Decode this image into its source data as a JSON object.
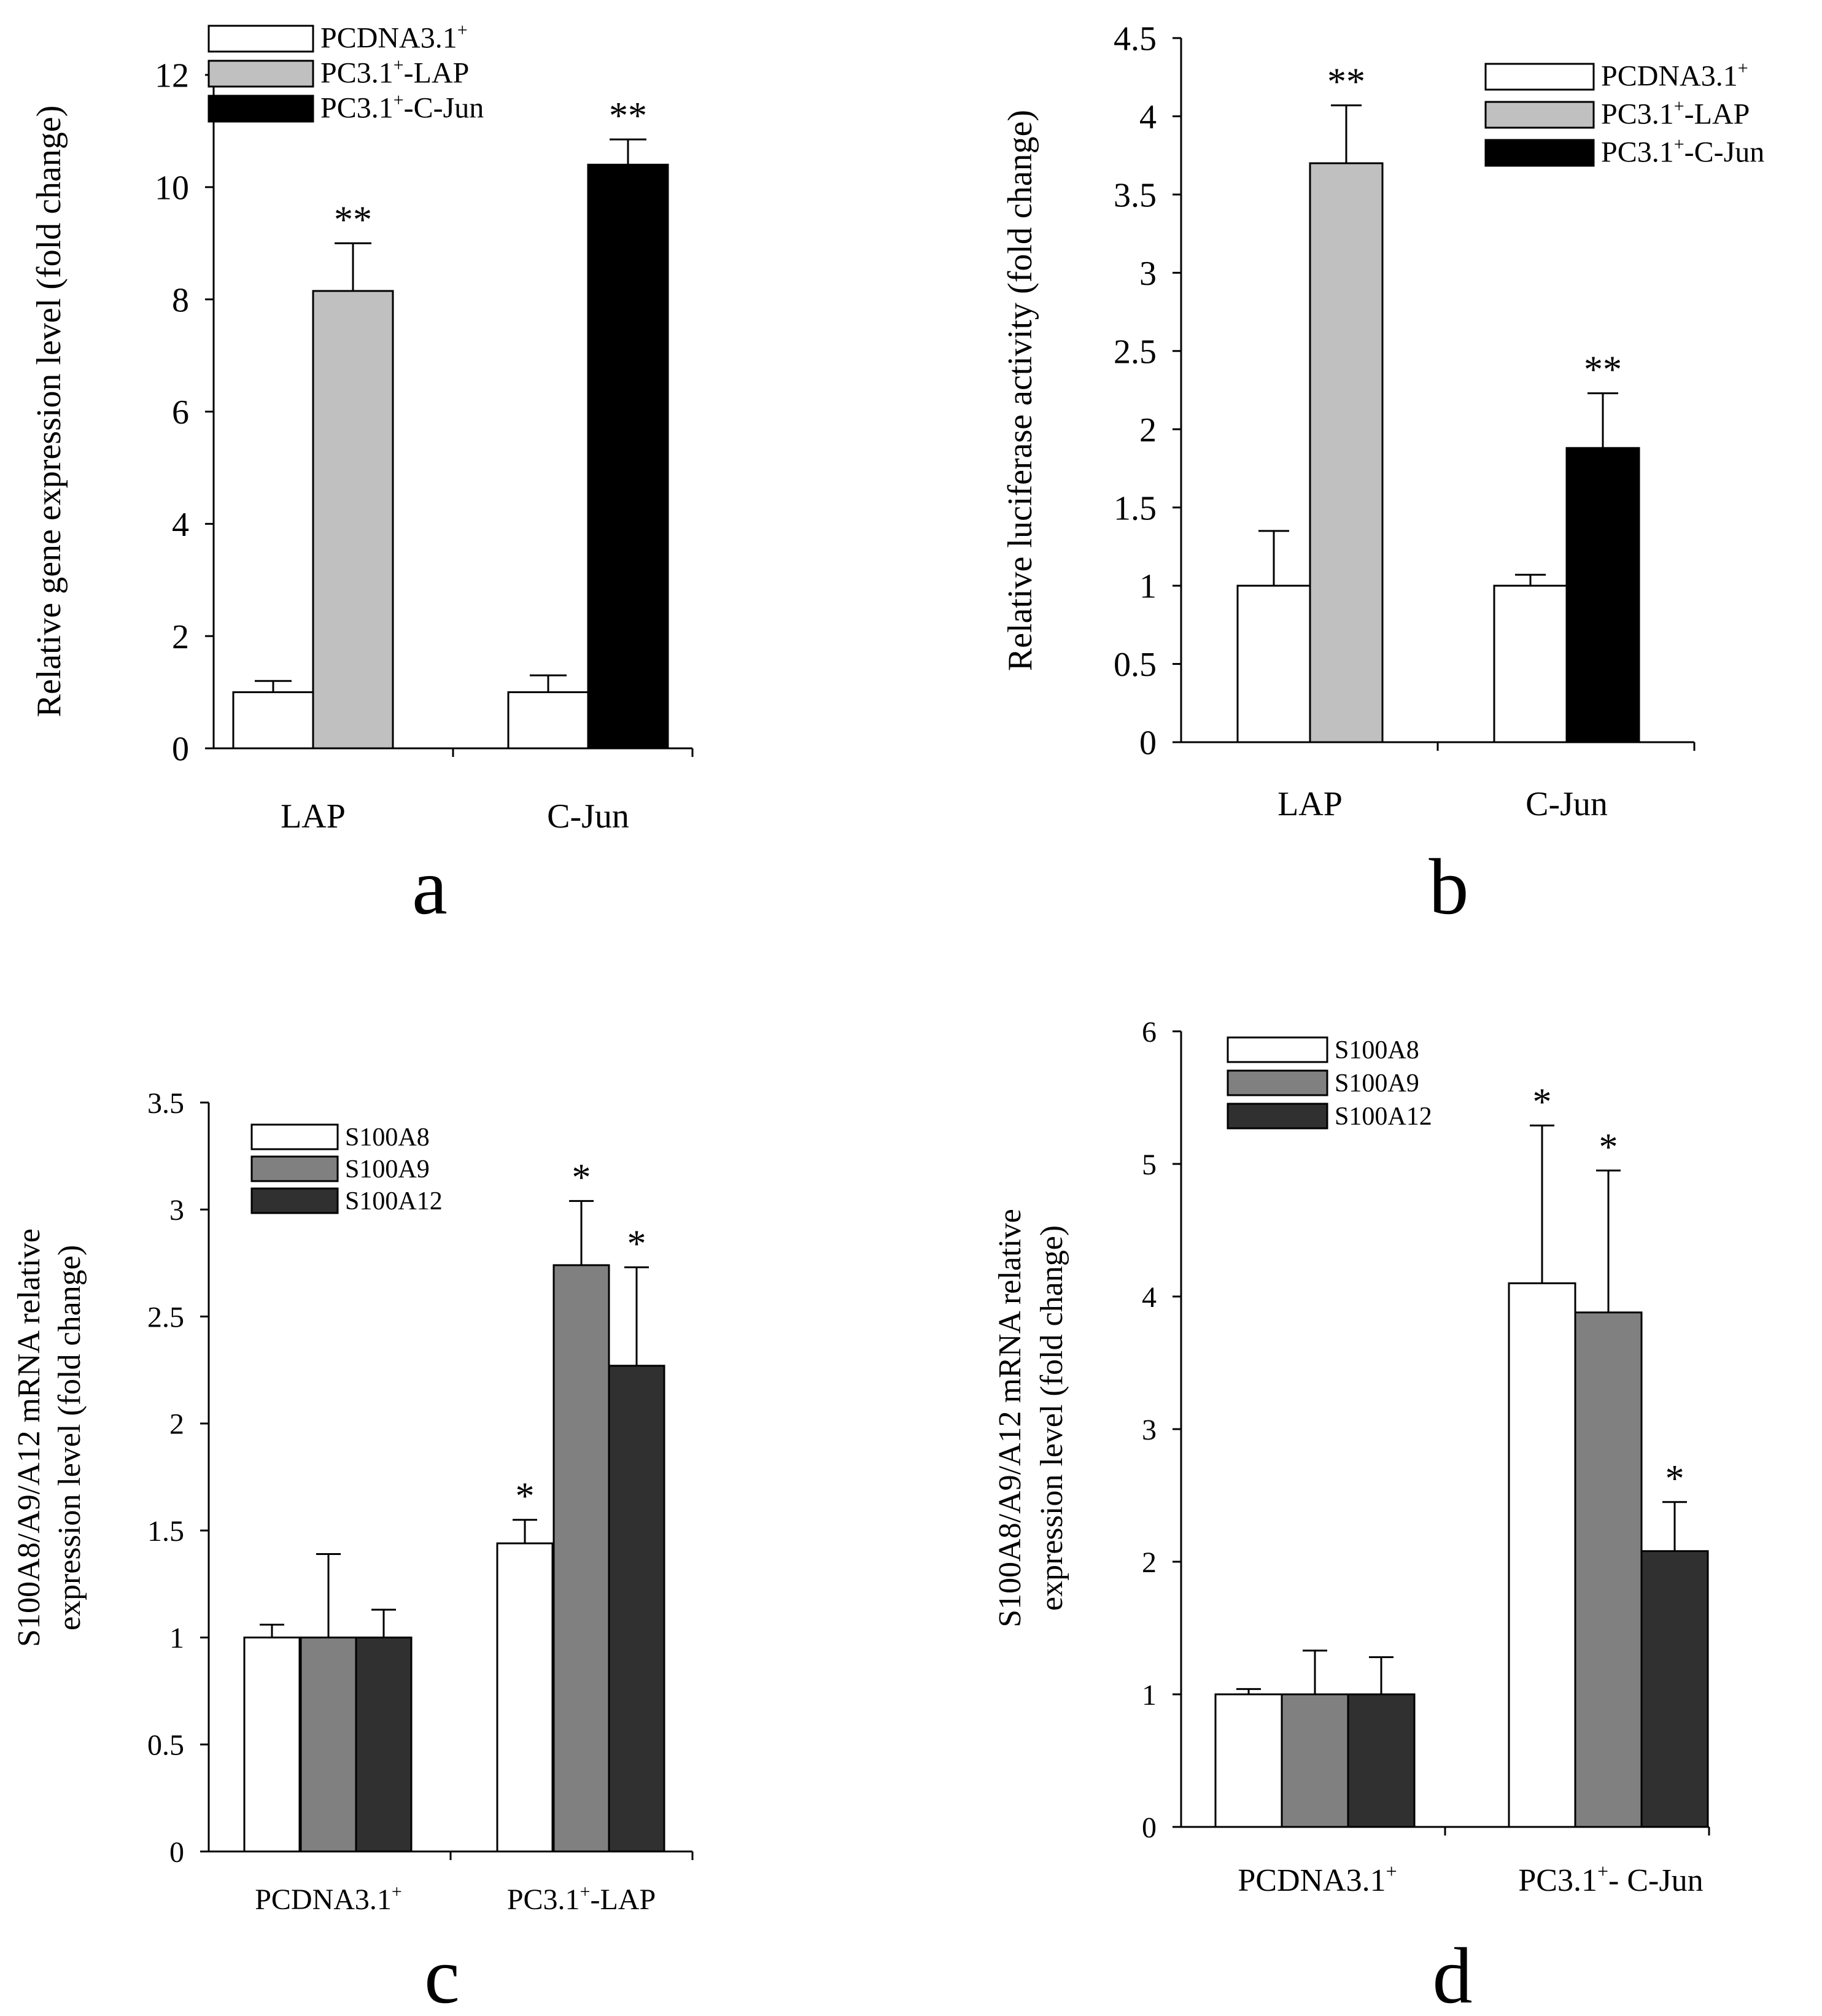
{
  "chart_data": [
    {
      "panel": "a",
      "type": "bar",
      "categories": [
        "LAP",
        "C-Jun"
      ],
      "series": [
        {
          "name": "PCDNA3.1+",
          "values": [
            1.0,
            1.0
          ],
          "errors": [
            0.2,
            0.3
          ],
          "color": "#ffffff",
          "annotations": [
            "",
            ""
          ]
        },
        {
          "name": "PC3.1+-LAP",
          "values": [
            8.15,
            null
          ],
          "errors": [
            0.85,
            null
          ],
          "color": "#c0c0c0",
          "annotations": [
            "**",
            ""
          ]
        },
        {
          "name": "PC3.1+-C-Jun",
          "values": [
            null,
            10.4
          ],
          "errors": [
            null,
            0.45
          ],
          "color": "#000000",
          "annotations": [
            "",
            "**"
          ]
        }
      ],
      "ylabel": "Relative gene expression level (fold change)",
      "xlabel": "",
      "ylim": [
        0,
        12
      ],
      "yticks": [
        "0",
        "2",
        "4",
        "6",
        "8",
        "10",
        "12"
      ],
      "legend_position": "top-left"
    },
    {
      "panel": "b",
      "type": "bar",
      "categories": [
        "LAP",
        "C-Jun"
      ],
      "series": [
        {
          "name": "PCDNA3.1+",
          "values": [
            1.0,
            1.0
          ],
          "errors": [
            0.35,
            0.07
          ],
          "color": "#ffffff",
          "annotations": [
            "",
            ""
          ]
        },
        {
          "name": "PC3.1+-LAP",
          "values": [
            3.7,
            null
          ],
          "errors": [
            0.37,
            null
          ],
          "color": "#c0c0c0",
          "annotations": [
            "**",
            ""
          ]
        },
        {
          "name": "PC3.1+-C-Jun",
          "values": [
            null,
            1.88
          ],
          "errors": [
            null,
            0.35
          ],
          "color": "#000000",
          "annotations": [
            "",
            "**"
          ]
        }
      ],
      "ylabel": "Relative luciferase activity (fold change)",
      "xlabel": "",
      "ylim": [
        0,
        4.5
      ],
      "yticks": [
        "0",
        "0.5",
        "1",
        "1.5",
        "2",
        "2.5",
        "3",
        "3.5",
        "4",
        "4.5"
      ],
      "legend_position": "top-right"
    },
    {
      "panel": "c",
      "type": "bar",
      "categories": [
        "PCDNA3.1+",
        "PC3.1+-LAP"
      ],
      "series": [
        {
          "name": "S100A8",
          "values": [
            1.0,
            1.44
          ],
          "errors": [
            0.06,
            0.11
          ],
          "color": "#ffffff",
          "annotations": [
            "",
            "*"
          ]
        },
        {
          "name": "S100A9",
          "values": [
            1.0,
            2.74
          ],
          "errors": [
            0.39,
            0.3
          ],
          "color": "#808080",
          "annotations": [
            "",
            "*"
          ]
        },
        {
          "name": "S100A12",
          "values": [
            1.0,
            2.27
          ],
          "errors": [
            0.13,
            0.46
          ],
          "color": "#303030",
          "annotations": [
            "",
            "*"
          ]
        }
      ],
      "ylabel_lines": [
        "S100A8/A9/A12 mRNA relative",
        "expression level (fold change)"
      ],
      "xlabel": "",
      "ylim": [
        0,
        3.5
      ],
      "yticks": [
        "0",
        "0.5",
        "1",
        "1.5",
        "2",
        "2.5",
        "3",
        "3.5"
      ],
      "legend_position": "top-left"
    },
    {
      "panel": "d",
      "type": "bar",
      "categories": [
        "PCDNA3.1+",
        "PC3.1+- C-Jun"
      ],
      "series": [
        {
          "name": "S100A8",
          "values": [
            1.0,
            4.1
          ],
          "errors": [
            0.04,
            1.19
          ],
          "color": "#ffffff",
          "annotations": [
            "",
            "*"
          ]
        },
        {
          "name": "S100A9",
          "values": [
            1.0,
            3.88
          ],
          "errors": [
            0.33,
            1.07
          ],
          "color": "#808080",
          "annotations": [
            "",
            "*"
          ]
        },
        {
          "name": "S100A12",
          "values": [
            1.0,
            2.08
          ],
          "errors": [
            0.28,
            0.37
          ],
          "color": "#303030",
          "annotations": [
            "",
            "*"
          ]
        }
      ],
      "ylabel_lines": [
        "S100A8/A9/A12 mRNA relative",
        "expression level (fold change)"
      ],
      "xlabel": "",
      "ylim": [
        0,
        6
      ],
      "yticks": [
        "0",
        "1",
        "2",
        "3",
        "4",
        "5",
        "6"
      ],
      "legend_position": "top-left"
    }
  ]
}
